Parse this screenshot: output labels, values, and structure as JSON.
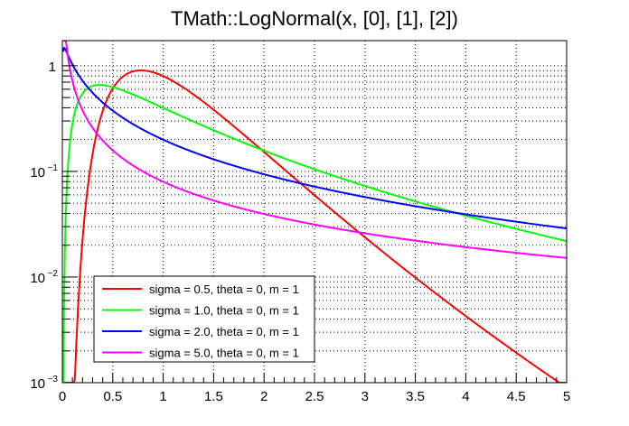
{
  "chart_data": {
    "type": "line",
    "title": "TMath::LogNormal(x, [0], [1], [2])",
    "xlabel": "",
    "ylabel": "",
    "xlim": [
      0,
      5
    ],
    "ylim": [
      0.001,
      1.73
    ],
    "yscale": "log",
    "grid": true,
    "x_ticks": [
      "0",
      "0.5",
      "1",
      "1.5",
      "2",
      "2.5",
      "3",
      "3.5",
      "4",
      "4.5",
      "5"
    ],
    "y_ticks": [
      {
        "base": "10",
        "exp": "−3",
        "value": 0.001
      },
      {
        "base": "10",
        "exp": "−2",
        "value": 0.01
      },
      {
        "base": "10",
        "exp": "−1",
        "value": 0.1
      },
      {
        "base": "1",
        "exp": "",
        "value": 1
      }
    ],
    "legend_position": "bottom-left",
    "function": "LogNormal(x, sigma, theta, m)",
    "series": [
      {
        "name": "sigma = 0.5, theta = 0, m = 1",
        "sigma": 0.5,
        "theta": 0,
        "m": 1,
        "color": "#ff0000"
      },
      {
        "name": "sigma = 1.0, theta = 0, m = 1",
        "sigma": 1.0,
        "theta": 0,
        "m": 1,
        "color": "#00ff00"
      },
      {
        "name": "sigma = 2.0, theta = 0, m = 1",
        "sigma": 2.0,
        "theta": 0,
        "m": 1,
        "color": "#0000ff"
      },
      {
        "name": "sigma = 5.0, theta = 0, m = 1",
        "sigma": 5.0,
        "theta": 0,
        "m": 1,
        "color": "#ff00ff"
      }
    ]
  }
}
